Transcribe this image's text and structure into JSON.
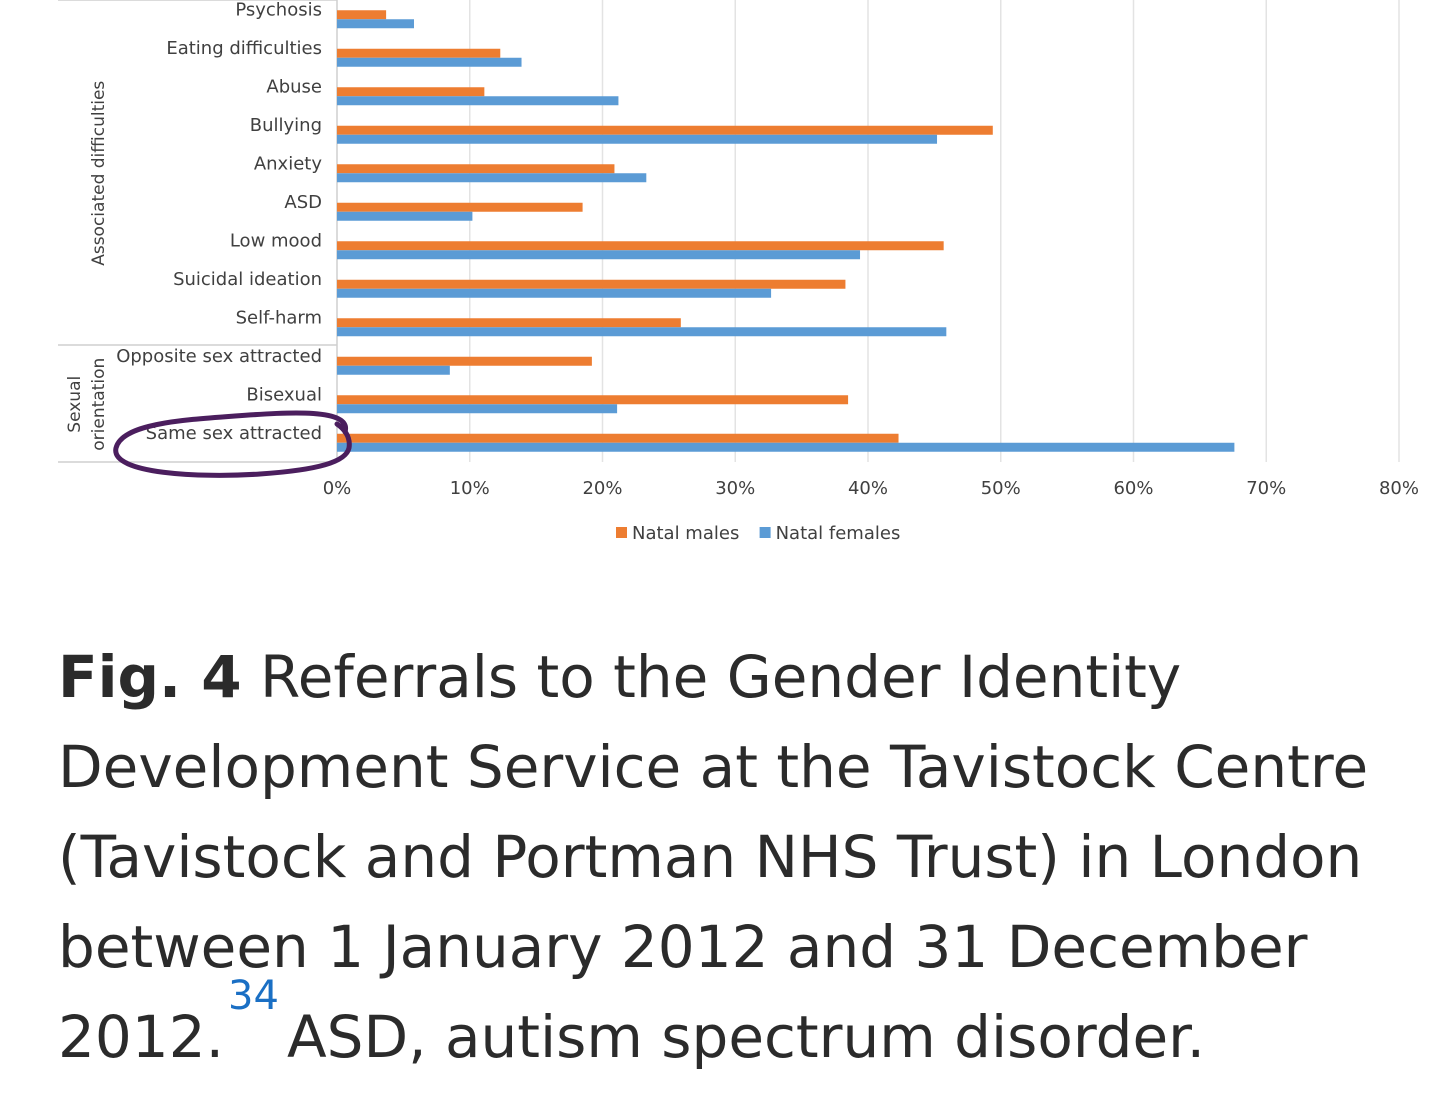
{
  "chart_data": {
    "type": "bar",
    "orientation": "horizontal",
    "categories": [
      "Psychosis",
      "Eating difficulties",
      "Abuse",
      "Bullying",
      "Anxiety",
      "ASD",
      "Low mood",
      "Suicidal ideation",
      "Self-harm",
      "Opposite sex attracted",
      "Bisexual",
      "Same sex attracted"
    ],
    "groups": [
      {
        "label": "Associated difficulties",
        "categories": [
          "Psychosis",
          "Eating difficulties",
          "Abuse",
          "Bullying",
          "Anxiety",
          "ASD",
          "Low mood",
          "Suicidal ideation",
          "Self-harm"
        ]
      },
      {
        "label": "Sexual orientation",
        "categories": [
          "Opposite sex attracted",
          "Bisexual",
          "Same sex attracted"
        ]
      }
    ],
    "series": [
      {
        "name": "Natal males",
        "color": "#ED7D31",
        "values": [
          3.7,
          12.3,
          11.1,
          49.4,
          20.9,
          18.5,
          45.7,
          38.3,
          25.9,
          19.2,
          38.5,
          42.3
        ]
      },
      {
        "name": "Natal females",
        "color": "#5B9BD5",
        "values": [
          5.8,
          13.9,
          21.2,
          45.2,
          23.3,
          10.2,
          39.4,
          32.7,
          45.9,
          8.5,
          21.1,
          67.6
        ]
      }
    ],
    "xlim": [
      0,
      80
    ],
    "xticks": [
      "0%",
      "10%",
      "20%",
      "30%",
      "40%",
      "50%",
      "60%",
      "70%",
      "80%"
    ],
    "grid": true,
    "legend_position": "bottom",
    "highlight": {
      "category": "Same sex attracted",
      "color": "#4B1E5E"
    }
  },
  "caption": {
    "fig_label": "Fig. 4",
    "text": " Referrals to the Gender Identity Development Service at the Tavistock Centre (Tavistock and Portman NHS Trust) in London between 1 January 2012 and 31 December 2012.",
    "reference": "34",
    "note": "ASD, autism spectrum disorder."
  }
}
